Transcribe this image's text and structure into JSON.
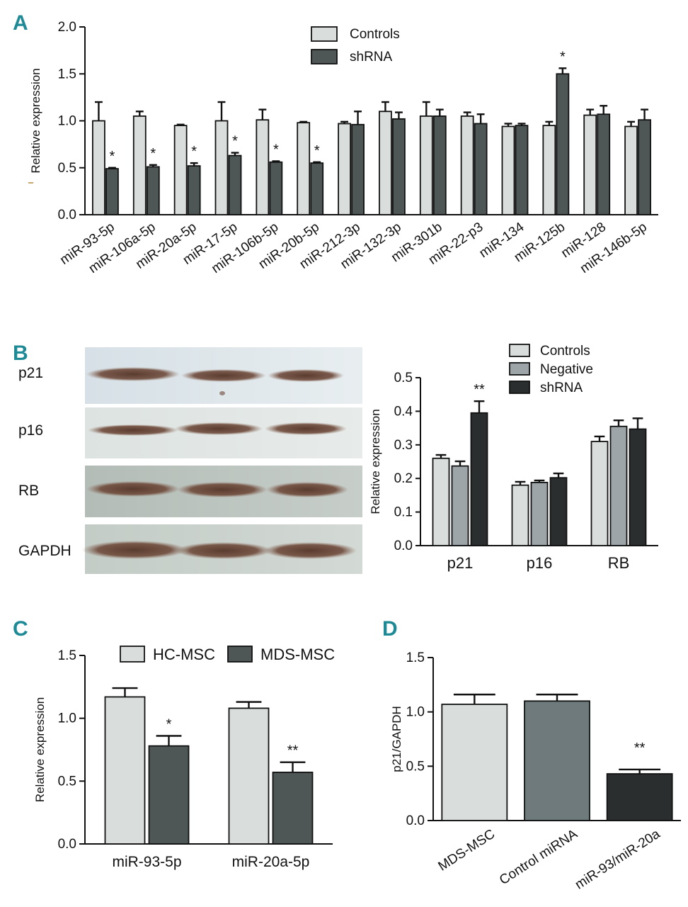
{
  "figure": {
    "panels": {
      "A": "A",
      "B": "B",
      "C": "C",
      "D": "D"
    },
    "blot_labels": [
      "p21",
      "p16",
      "RB",
      "GAPDH"
    ],
    "colors": {
      "light": "#d9dedd",
      "medium": "#9ea5a8",
      "dark": "#4e5656",
      "darkest": "#2a2e2f",
      "d_medium": "#6e7a7c",
      "panel_letter": "#1e8a96"
    }
  },
  "chart_data": [
    {
      "id": "A",
      "type": "bar",
      "title": "",
      "xlabel": "",
      "ylabel": "Relative expression",
      "ylim": [
        0,
        2.0
      ],
      "yticks": [
        "0.0",
        "0.5",
        "1.0",
        "1.5",
        "2.0"
      ],
      "legend_position": "top-center",
      "categories": [
        "miR-93-5p",
        "miR-106a-5p",
        "miR-20a-5p",
        "miR-17-5p",
        "miR-106b-5p",
        "miR-20b-5p",
        "miR-212-3p",
        "miR-132-3p",
        "miR-301b",
        "miR-22-p3",
        "miR-134",
        "miR-125b",
        "miR-128",
        "miR-146b-5p"
      ],
      "series": [
        {
          "name": "Controls",
          "values": [
            1.0,
            1.05,
            0.95,
            1.0,
            1.01,
            0.98,
            0.97,
            1.1,
            1.05,
            1.05,
            0.94,
            0.95,
            1.06,
            0.94
          ],
          "errors": [
            0.2,
            0.05,
            0.01,
            0.2,
            0.11,
            0.01,
            0.02,
            0.1,
            0.15,
            0.04,
            0.03,
            0.04,
            0.06,
            0.05
          ]
        },
        {
          "name": "shRNA",
          "values": [
            0.49,
            0.51,
            0.52,
            0.63,
            0.56,
            0.55,
            0.96,
            1.02,
            1.05,
            0.97,
            0.95,
            1.5,
            1.07,
            1.01
          ],
          "errors": [
            0.01,
            0.02,
            0.03,
            0.03,
            0.01,
            0.01,
            0.14,
            0.07,
            0.07,
            0.1,
            0.02,
            0.06,
            0.09,
            0.11
          ]
        }
      ],
      "annotations": [
        "*",
        "*",
        "*",
        "*",
        "*",
        "*",
        "",
        "",
        "",
        "",
        "",
        "*",
        "",
        ""
      ]
    },
    {
      "id": "B",
      "type": "bar",
      "title": "",
      "xlabel": "",
      "ylabel": "Relative expression",
      "ylim": [
        0,
        0.5
      ],
      "yticks": [
        "0.0",
        "0.1",
        "0.2",
        "0.3",
        "0.4",
        "0.5"
      ],
      "legend_position": "top-right",
      "categories": [
        "p21",
        "p16",
        "RB"
      ],
      "series": [
        {
          "name": "Controls",
          "values": [
            0.26,
            0.18,
            0.31
          ],
          "errors": [
            0.01,
            0.01,
            0.015
          ]
        },
        {
          "name": "Negative",
          "values": [
            0.237,
            0.188,
            0.355
          ],
          "errors": [
            0.014,
            0.006,
            0.018
          ]
        },
        {
          "name": "shRNA",
          "values": [
            0.395,
            0.202,
            0.347
          ],
          "errors": [
            0.035,
            0.013,
            0.032
          ]
        }
      ],
      "annotations": [
        {
          "category": "p21",
          "series": "shRNA",
          "text": "**"
        }
      ]
    },
    {
      "id": "C",
      "type": "bar",
      "title": "",
      "xlabel": "",
      "ylabel": "Relative expression",
      "ylim": [
        0,
        1.5
      ],
      "yticks": [
        "0.0",
        "0.5",
        "1.0",
        "1.5"
      ],
      "legend_position": "top",
      "categories": [
        "miR-93-5p",
        "miR-20a-5p"
      ],
      "series": [
        {
          "name": "HC-MSC",
          "values": [
            1.17,
            1.08
          ],
          "errors": [
            0.07,
            0.05
          ]
        },
        {
          "name": "MDS-MSC",
          "values": [
            0.78,
            0.57
          ],
          "errors": [
            0.08,
            0.08
          ]
        }
      ],
      "annotations": [
        "*",
        "**"
      ]
    },
    {
      "id": "D",
      "type": "bar",
      "title": "",
      "xlabel": "",
      "ylabel": "p21/GAPDH",
      "ylim": [
        0,
        1.5
      ],
      "yticks": [
        "0.0",
        "0.5",
        "1.0",
        "1.5"
      ],
      "categories": [
        "MDS-MSC",
        "Control miRNA",
        "miR-93/miR-20a"
      ],
      "values": [
        1.07,
        1.1,
        0.43
      ],
      "errors": [
        0.09,
        0.06,
        0.04
      ],
      "annotations": [
        "",
        "",
        "**"
      ]
    }
  ]
}
